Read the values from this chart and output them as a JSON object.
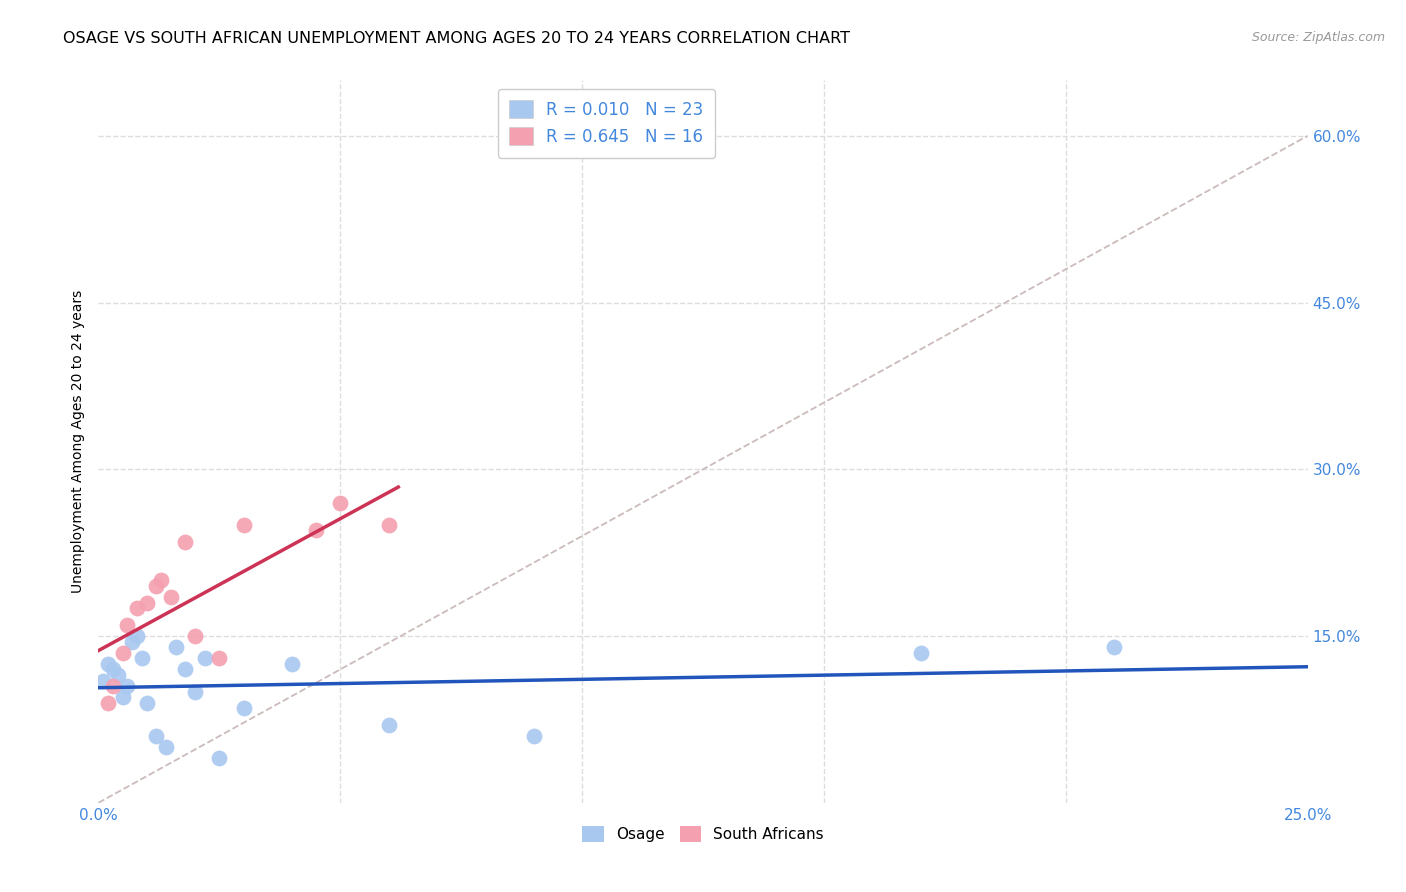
{
  "title": "OSAGE VS SOUTH AFRICAN UNEMPLOYMENT AMONG AGES 20 TO 24 YEARS CORRELATION CHART",
  "source": "Source: ZipAtlas.com",
  "ylabel": "Unemployment Among Ages 20 to 24 years",
  "xlim": [
    0.0,
    0.25
  ],
  "ylim": [
    0.0,
    0.65
  ],
  "xticks": [
    0.0,
    0.25
  ],
  "xticklabels": [
    "0.0%",
    "25.0%"
  ],
  "yticks_right": [
    0.15,
    0.3,
    0.45,
    0.6
  ],
  "yticklabels_right": [
    "15.0%",
    "30.0%",
    "45.0%",
    "60.0%"
  ],
  "osage_color": "#a8c8f0",
  "sa_color": "#f4a0b0",
  "osage_line_color": "#2255bb",
  "sa_line_color": "#cc3355",
  "diag_line_color": "#ccbbbb",
  "R_osage": 0.01,
  "N_osage": 23,
  "R_sa": 0.645,
  "N_sa": 16,
  "osage_x": [
    0.001,
    0.002,
    0.003,
    0.004,
    0.005,
    0.006,
    0.007,
    0.008,
    0.009,
    0.01,
    0.012,
    0.014,
    0.016,
    0.018,
    0.02,
    0.022,
    0.025,
    0.03,
    0.04,
    0.06,
    0.09,
    0.17,
    0.21
  ],
  "osage_y": [
    0.11,
    0.125,
    0.12,
    0.115,
    0.095,
    0.105,
    0.145,
    0.15,
    0.13,
    0.09,
    0.06,
    0.05,
    0.14,
    0.12,
    0.1,
    0.13,
    0.04,
    0.085,
    0.125,
    0.07,
    0.06,
    0.135,
    0.14
  ],
  "sa_x": [
    0.002,
    0.003,
    0.005,
    0.006,
    0.008,
    0.01,
    0.012,
    0.013,
    0.015,
    0.018,
    0.02,
    0.025,
    0.03,
    0.045,
    0.05,
    0.06
  ],
  "sa_y": [
    0.09,
    0.105,
    0.135,
    0.16,
    0.175,
    0.18,
    0.195,
    0.2,
    0.185,
    0.235,
    0.15,
    0.13,
    0.25,
    0.245,
    0.27,
    0.25
  ],
  "legend_labels": [
    "Osage",
    "South Africans"
  ],
  "background_color": "#ffffff",
  "grid_color": "#dddddd",
  "tick_color": "#4488dd",
  "title_fontsize": 11.5,
  "axis_label_fontsize": 10,
  "tick_fontsize": 11,
  "marker_size": 130
}
